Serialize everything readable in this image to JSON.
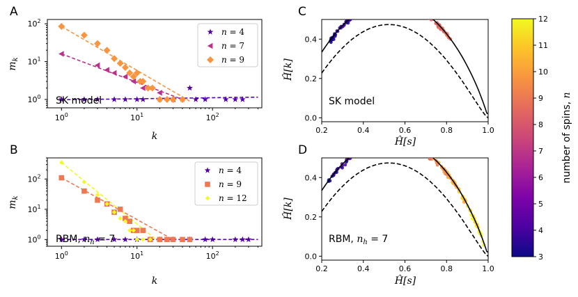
{
  "colors": {
    "n3": "#0d0887",
    "n4": "#5302a3",
    "n7": "#b83289",
    "n9": "#f89540",
    "n12": "#f0f921",
    "ink": "#000000"
  },
  "chart_data": [
    {
      "panel": "A",
      "type": "scatter",
      "xscale": "log",
      "yscale": "log",
      "xlim": [
        0.65,
        450
      ],
      "ylim": [
        0.6,
        130
      ],
      "xlabel": "k",
      "ylabel": "m_k",
      "xticks": [
        "10^0",
        "10^1",
        "10^2"
      ],
      "yticks": [
        "10^0",
        "10^1",
        "10^2"
      ],
      "annotation": "SK model",
      "legend_position": "upper right",
      "series": [
        {
          "name": "n = 4",
          "label": "n = 4",
          "marker": "star",
          "color": "#5302a3",
          "x": [
            1,
            2,
            3,
            5,
            7,
            10,
            12,
            20,
            30,
            40,
            50,
            60,
            80,
            150,
            200,
            250
          ],
          "y": [
            1,
            1,
            1,
            1,
            1,
            1,
            1,
            1,
            1,
            1,
            2,
            1,
            1,
            1,
            1,
            1
          ],
          "fit": {
            "x": [
              1,
              400
            ],
            "y": [
              0.98,
              1.15
            ]
          }
        },
        {
          "name": "n = 7",
          "label": "n = 7",
          "marker": "triangle-left",
          "color": "#b83289",
          "x": [
            1,
            3,
            4,
            5,
            7,
            9,
            12,
            15,
            20,
            30
          ],
          "y": [
            16,
            8,
            6,
            5,
            4,
            3,
            2,
            2,
            1.5,
            1
          ],
          "fit": {
            "x": [
              1,
              40
            ],
            "y": [
              16,
              1
            ]
          }
        },
        {
          "name": "n = 9",
          "label": "n = 9",
          "marker": "diamond",
          "color": "#f89540",
          "x": [
            1,
            2,
            3,
            4,
            5,
            6,
            7,
            8,
            9,
            10,
            11,
            12,
            14,
            16,
            20,
            25,
            30,
            40
          ],
          "y": [
            85,
            50,
            30,
            20,
            12,
            9,
            7,
            5,
            4,
            5,
            3,
            3,
            2,
            2,
            1,
            1,
            1,
            1
          ],
          "fit": {
            "x": [
              1,
              50
            ],
            "y": [
              85,
              0.9
            ]
          }
        }
      ]
    },
    {
      "panel": "B",
      "type": "scatter",
      "xscale": "log",
      "yscale": "log",
      "xlim": [
        0.65,
        450
      ],
      "ylim": [
        0.6,
        500
      ],
      "xlabel": "k",
      "ylabel": "m_k",
      "xticks": [
        "10^0",
        "10^1",
        "10^2"
      ],
      "yticks": [
        "10^0",
        "10^1",
        "10^2"
      ],
      "annotation": "RBM, n_h = 7",
      "legend_position": "upper right",
      "series": [
        {
          "name": "n = 4",
          "label": "n = 4",
          "marker": "star",
          "color": "#5302a3",
          "x": [
            1,
            2,
            3,
            5,
            7,
            10,
            15,
            20,
            30,
            50,
            80,
            100,
            200,
            250,
            300
          ],
          "y": [
            1,
            1,
            1,
            1,
            1,
            1,
            1,
            1,
            1,
            1,
            1,
            1,
            1,
            1,
            1
          ],
          "fit": {
            "x": [
              1,
              400
            ],
            "y": [
              1,
              1
            ]
          }
        },
        {
          "name": "n = 9",
          "label": "n = 9",
          "marker": "square",
          "color": "#ed7953",
          "x": [
            1,
            2,
            3,
            4,
            5,
            6,
            7,
            8,
            9,
            10,
            12,
            15,
            20,
            25,
            30,
            40,
            50
          ],
          "y": [
            110,
            40,
            20,
            15,
            8,
            10,
            5,
            4,
            2,
            2,
            2,
            1,
            1,
            1,
            1,
            1,
            1
          ],
          "fit": {
            "x": [
              1,
              30
            ],
            "y": [
              110,
              1
            ]
          }
        },
        {
          "name": "n = 12",
          "label": "n = 12",
          "marker": "diamond-small",
          "color": "#f0f921",
          "x": [
            1,
            2,
            3,
            4,
            5,
            6,
            7,
            8,
            9,
            10,
            12,
            15
          ],
          "y": [
            350,
            80,
            30,
            15,
            8,
            5,
            4,
            2,
            2,
            1,
            1,
            1
          ],
          "fit": {
            "x": [
              1,
              20
            ],
            "y": [
              350,
              0.8
            ]
          }
        }
      ]
    },
    {
      "panel": "C",
      "type": "scatter",
      "xlim": [
        0.2,
        1.0
      ],
      "ylim": [
        -0.02,
        0.5
      ],
      "xlabel": "Ĥ[s]",
      "ylabel": "Ĥ[k]",
      "xticks": [
        "0.2",
        "0.4",
        "0.6",
        "0.8",
        "1.0"
      ],
      "yticks": [
        "0.0",
        "0.2",
        "0.4"
      ],
      "annotation": "SK model",
      "scatter_range": {
        "x": [
          0.24,
          0.82
        ],
        "n": [
          3,
          9
        ]
      },
      "curves": [
        {
          "name": "upper bound",
          "style": "solid"
        },
        {
          "name": "lower bound",
          "style": "dashed"
        }
      ]
    },
    {
      "panel": "D",
      "type": "scatter",
      "xlim": [
        0.2,
        1.0
      ],
      "ylim": [
        -0.02,
        0.5
      ],
      "xlabel": "Ĥ[s]",
      "ylabel": "Ĥ[k]",
      "xticks": [
        "0.2",
        "0.4",
        "0.6",
        "0.8",
        "1.0"
      ],
      "yticks": [
        "0.0",
        "0.2",
        "0.4"
      ],
      "annotation": "RBM, n_h = 7",
      "scatter_range": {
        "x": [
          0.22,
          0.98
        ],
        "n": [
          3,
          12
        ]
      },
      "curves": [
        {
          "name": "upper bound",
          "style": "solid"
        },
        {
          "name": "lower bound",
          "style": "dashed"
        }
      ]
    },
    {
      "panel": "colorbar",
      "type": "colorbar",
      "label": "number of spins, n",
      "range": [
        3,
        12
      ],
      "ticks": [
        "3",
        "4",
        "5",
        "6",
        "7",
        "8",
        "9",
        "10",
        "11",
        "12"
      ]
    }
  ],
  "labels": {
    "A": "A",
    "B": "B",
    "C": "C",
    "D": "D",
    "skA": "SK model",
    "skC": "SK model",
    "rbm_prefix": "RBM, ",
    "n_h": "n",
    "n_h_sub": "h",
    "n_h_val": " = 7",
    "xk": "k",
    "mk_m": "m",
    "mk_sub": "k",
    "hs": "Ĥ[s]",
    "hk": "Ĥ[k]",
    "cb_label": "number of spins, ",
    "cb_n": "n",
    "leg_n": "n",
    "leg_4": " = 4",
    "leg_7": " = 7",
    "leg_9": " = 9",
    "leg_12": " = 12",
    "ten": "10",
    "exp0": "0",
    "exp1": "1",
    "exp2": "2"
  }
}
